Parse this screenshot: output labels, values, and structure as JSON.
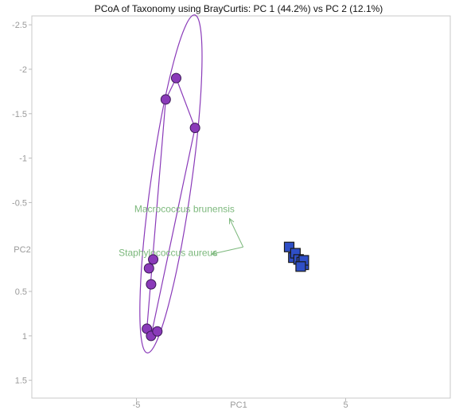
{
  "chart_data": {
    "type": "scatter",
    "title": "PCoA of Taxonomy using BrayCurtis: PC 1 (44.2%) vs PC 2 (12.1%)",
    "xlabel": "PC1",
    "ylabel": "PC2",
    "xlim": [
      -10,
      10
    ],
    "ylim": [
      1.7,
      -2.6
    ],
    "y_inverted": true,
    "xticks": [
      {
        "value": -5,
        "label": "-5"
      },
      {
        "value": 5,
        "label": "5"
      }
    ],
    "yticks": [
      {
        "value": -2.5,
        "label": "-2.5"
      },
      {
        "value": -2,
        "label": "-2"
      },
      {
        "value": -1.5,
        "label": "-1.5"
      },
      {
        "value": -1,
        "label": "-1"
      },
      {
        "value": -0.5,
        "label": "-0.5"
      },
      {
        "value": 0.5,
        "label": "0.5"
      },
      {
        "value": 1,
        "label": "1"
      },
      {
        "value": 1.5,
        "label": "1.5"
      }
    ],
    "grid": false,
    "series": [
      {
        "color": "#8a3ab9",
        "marker": "circle",
        "points": [
          {
            "x": -3.1,
            "y": -1.9
          },
          {
            "x": -3.6,
            "y": -1.66
          },
          {
            "x": -2.2,
            "y": -1.34
          },
          {
            "x": -4.2,
            "y": 0.14
          },
          {
            "x": -4.4,
            "y": 0.24
          },
          {
            "x": -4.3,
            "y": 0.42
          },
          {
            "x": -4.5,
            "y": 0.92
          },
          {
            "x": -4.3,
            "y": 1.0
          },
          {
            "x": -4.0,
            "y": 0.95
          }
        ],
        "hull": [
          [
            -3.1,
            -1.9
          ],
          [
            -2.2,
            -1.34
          ],
          [
            -4.3,
            1.0
          ],
          [
            -4.5,
            0.92
          ],
          [
            -3.6,
            -1.66
          ]
        ],
        "ellipse": {
          "cx": -3.35,
          "cy": -0.71,
          "rx": 0.97,
          "ry": 1.92,
          "angle_deg": 8
        }
      },
      {
        "color": "#2f4fc7",
        "marker": "square",
        "points": [
          {
            "x": 2.3,
            "y": 0.0
          },
          {
            "x": 2.5,
            "y": 0.12
          },
          {
            "x": 2.6,
            "y": 0.07
          },
          {
            "x": 2.75,
            "y": 0.14
          },
          {
            "x": 2.9,
            "y": 0.17
          },
          {
            "x": 3.0,
            "y": 0.2
          },
          {
            "x": 3.0,
            "y": 0.15
          },
          {
            "x": 2.85,
            "y": 0.22
          }
        ]
      }
    ],
    "arrows": [
      {
        "label": "Macrococcus brunensis",
        "x": -0.55,
        "y": -0.32,
        "label_x": -5.1,
        "label_y": -0.39
      },
      {
        "label": "Staphylococcus aureus",
        "x": -1.4,
        "y": 0.08,
        "label_x": -5.85,
        "label_y": 0.1
      }
    ],
    "arrow_origin": {
      "x": 0.1,
      "y": 0.0
    },
    "arrow_color": "#7cb87c"
  }
}
